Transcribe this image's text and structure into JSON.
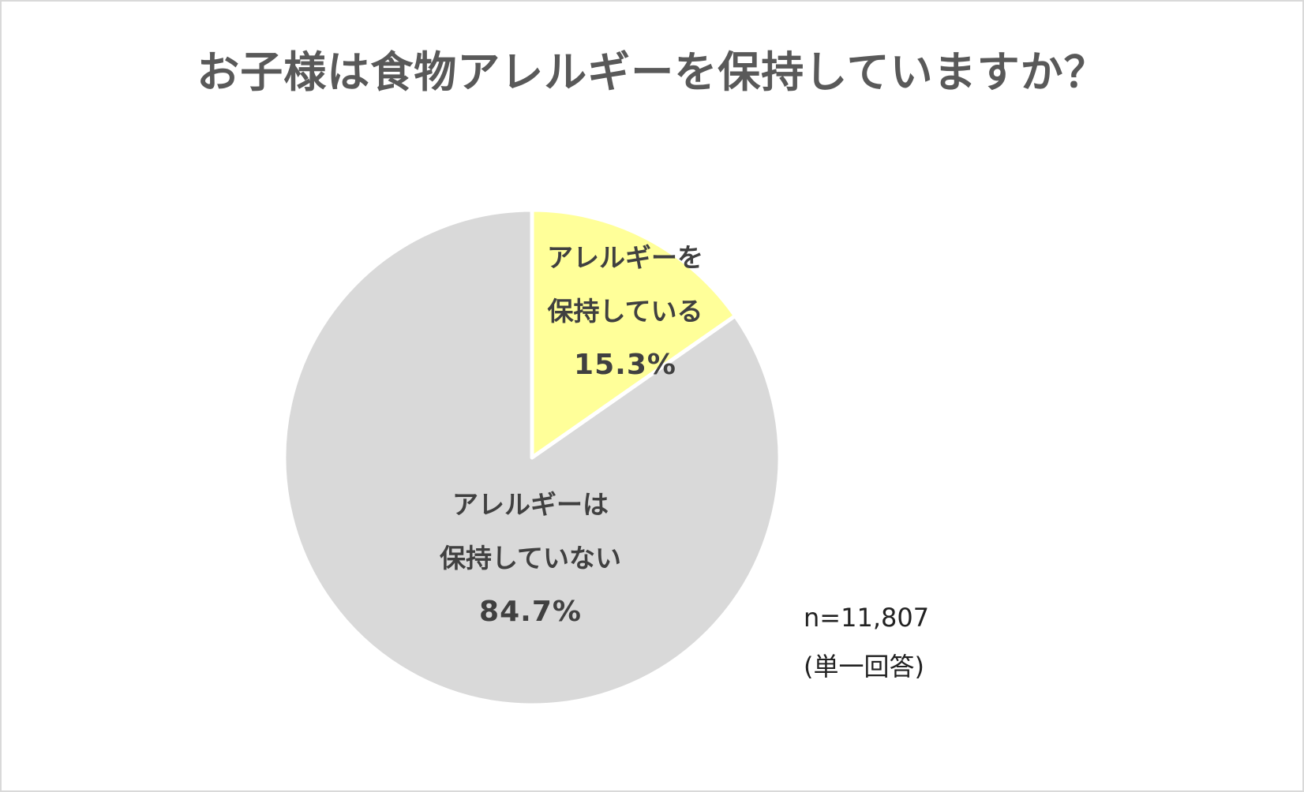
{
  "title": "お子様は食物アレルギーを保持していますか？",
  "note": {
    "sample_size": "n=11,807",
    "answer_type": "(単一回答)"
  },
  "colors": {
    "title_text": "#595959",
    "label_text": "#404040",
    "slice_yes": "#FFFF99",
    "slice_no": "#D9D9D9",
    "separator": "#FFFFFF",
    "frame_border": "#D9D9D9"
  },
  "slices": [
    {
      "key": "yes",
      "label_line1": "アレルギーを",
      "label_line2": "保持している",
      "percent_text": "15.3%",
      "value": 15.3,
      "color": "#FFFF99"
    },
    {
      "key": "no",
      "label_line1": "アレルギーは",
      "label_line2": "保持していない",
      "percent_text": "84.7%",
      "value": 84.7,
      "color": "#D9D9D9"
    }
  ],
  "chart_data": {
    "type": "pie",
    "title": "お子様は食物アレルギーを保持していますか？",
    "categories": [
      "アレルギーを保持している",
      "アレルギーは保持していない"
    ],
    "values": [
      15.3,
      84.7
    ],
    "unit": "%",
    "colors": [
      "#FFFF99",
      "#D9D9D9"
    ],
    "start_angle": "12 o'clock, clockwise",
    "data_labels": [
      "アレルギーを保持している 15.3%",
      "アレルギーは保持していない 84.7%"
    ],
    "annotations": [
      "n=11,807",
      "(単一回答)"
    ],
    "legend": "none (labels inside slices)"
  }
}
